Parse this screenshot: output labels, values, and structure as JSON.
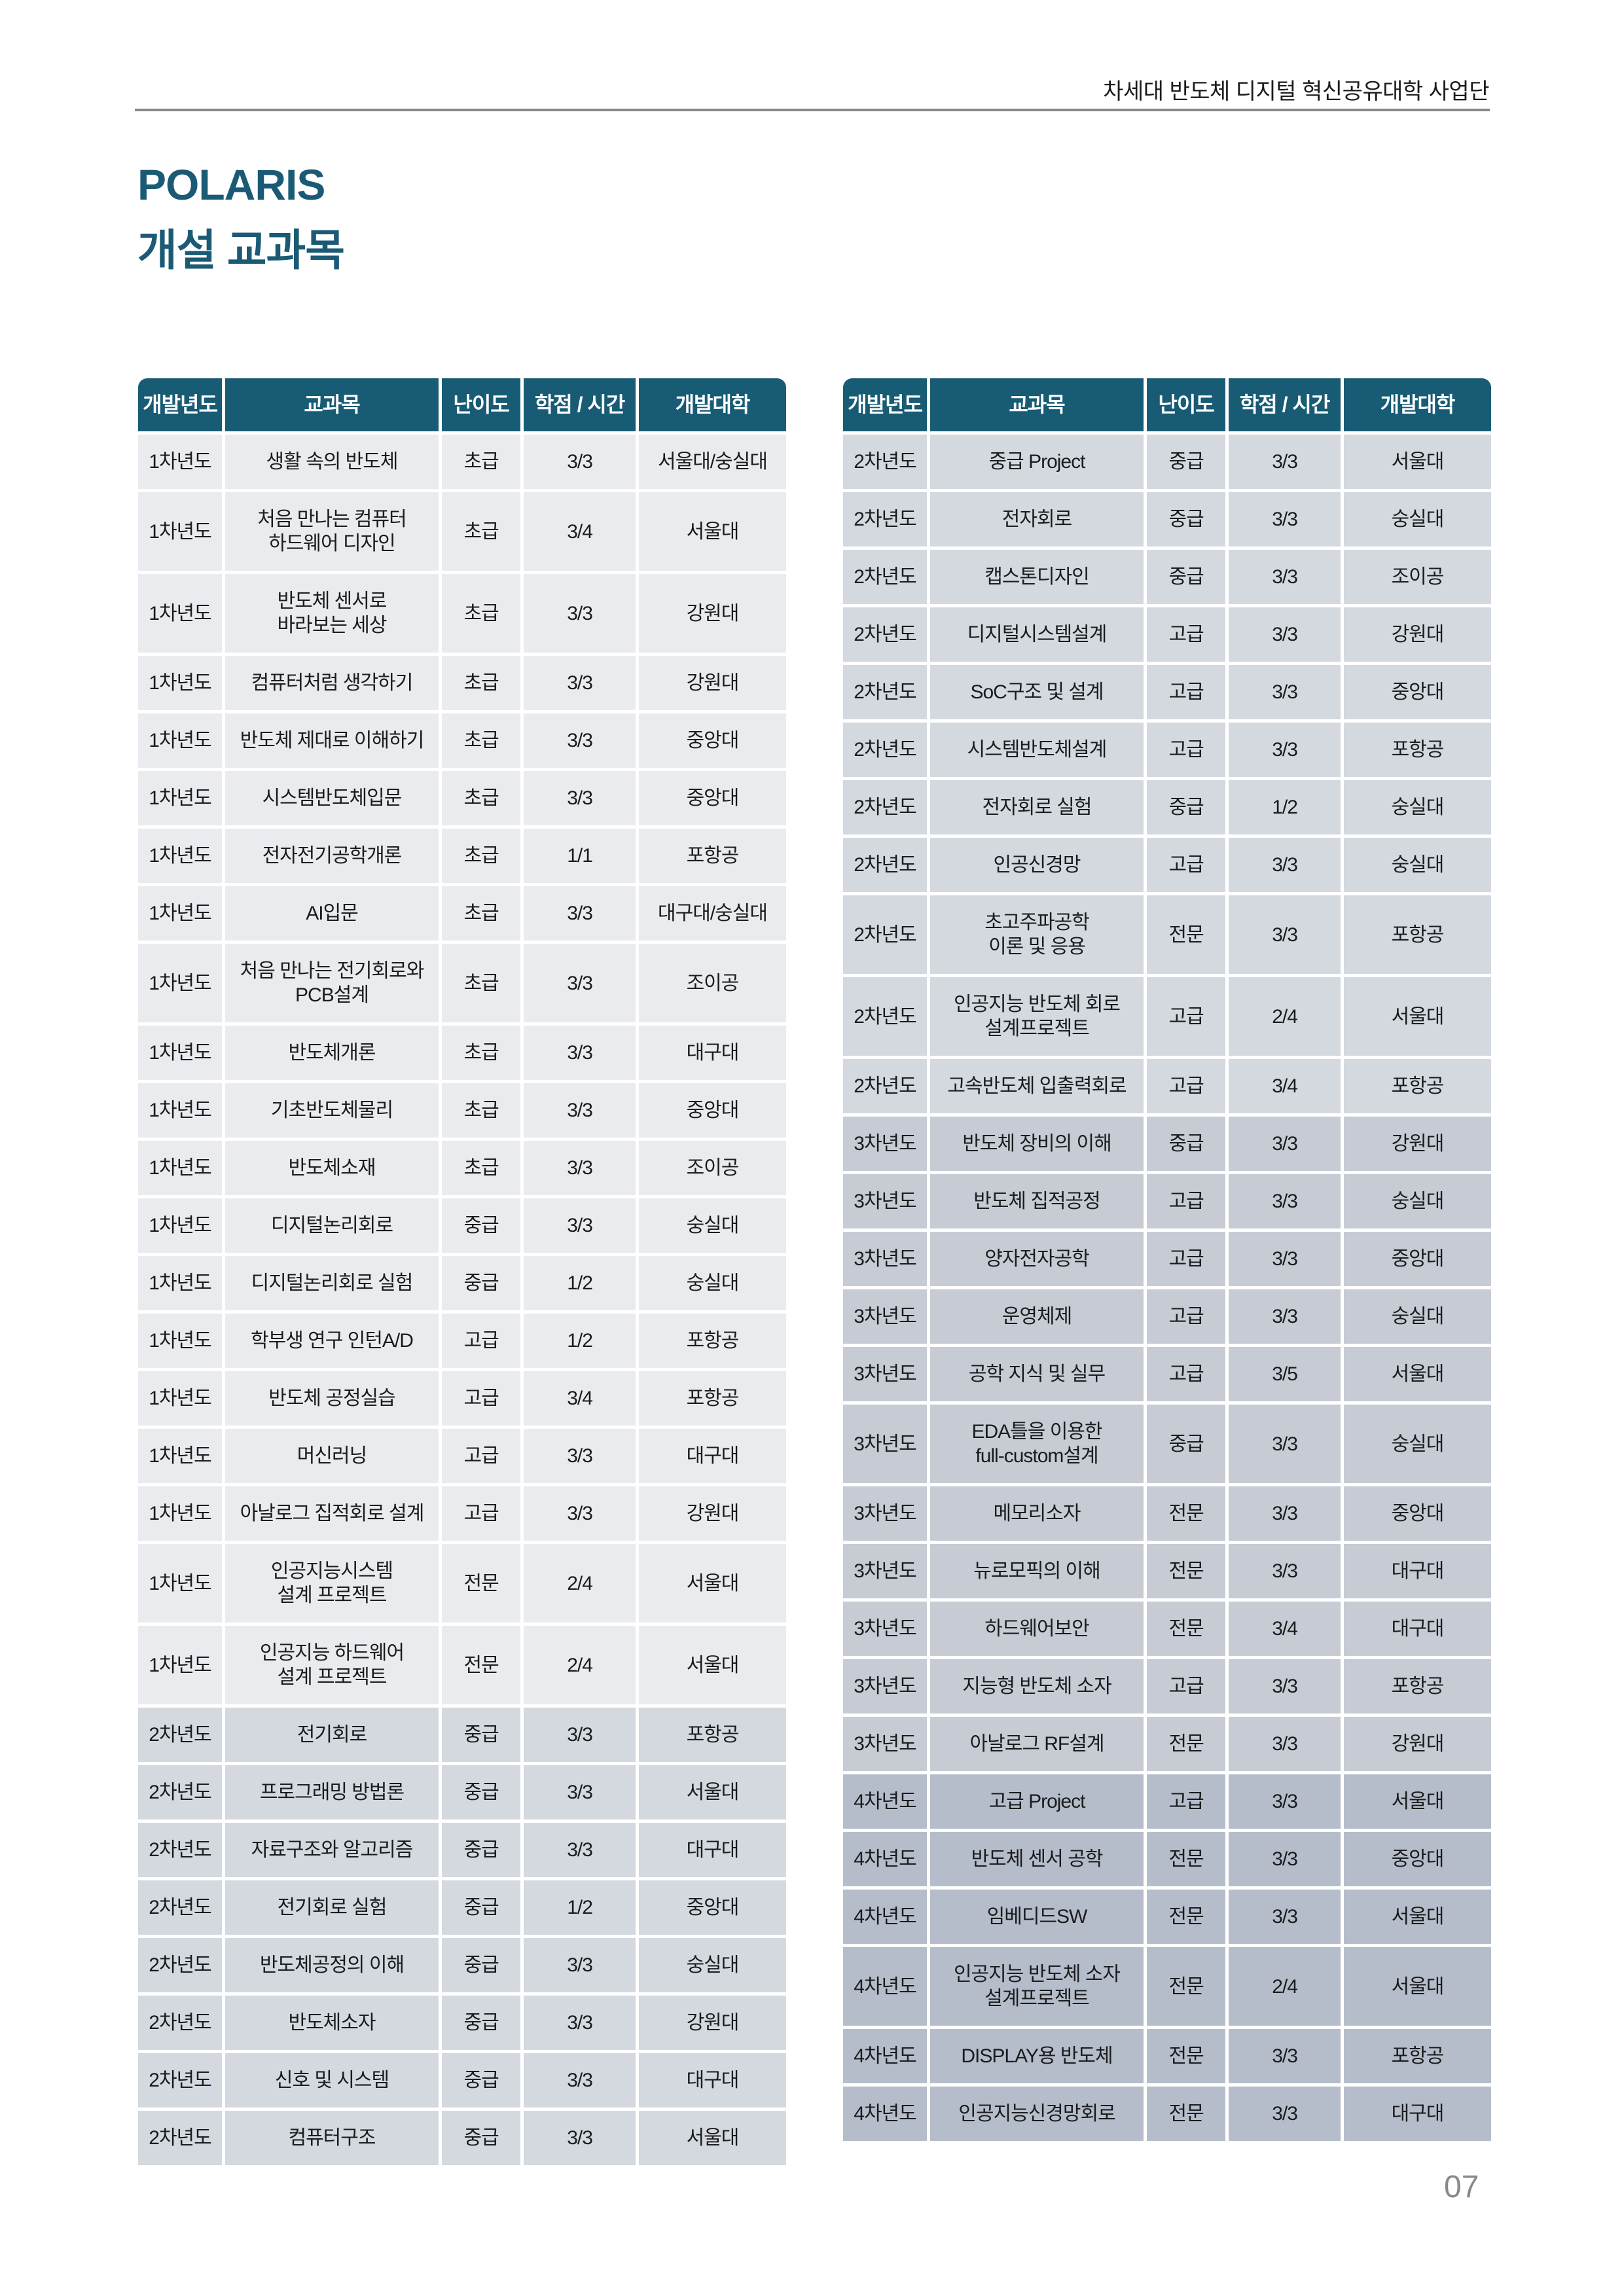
{
  "page": {
    "header_note": "차세대 반도체 디지털 혁신공유대학 사업단",
    "title_line1": "POLARIS",
    "title_line2": "개설 교과목",
    "page_number": "07"
  },
  "colors": {
    "header_bg": "#185b74",
    "title": "#1b5a75",
    "rule": "#84888d",
    "year1_row": "#e9ebef",
    "year2_row": "#d4d8df",
    "year3_row": "#c6cbd4",
    "year4_row": "#b6bdca"
  },
  "columns": [
    "개발년도",
    "교과목",
    "난이도",
    "학점 / 시간",
    "개발대학"
  ],
  "tables": {
    "left": {
      "rows": [
        {
          "year": "1차년도",
          "course": "생활 속의 반도체",
          "level": "초급",
          "credit": "3/3",
          "univ": "서울대/숭실대"
        },
        {
          "year": "1차년도",
          "course": "처음 만나는 컴퓨터\n하드웨어 디자인",
          "level": "초급",
          "credit": "3/4",
          "univ": "서울대"
        },
        {
          "year": "1차년도",
          "course": "반도체 센서로\n바라보는 세상",
          "level": "초급",
          "credit": "3/3",
          "univ": "강원대"
        },
        {
          "year": "1차년도",
          "course": "컴퓨터처럼 생각하기",
          "level": "초급",
          "credit": "3/3",
          "univ": "강원대"
        },
        {
          "year": "1차년도",
          "course": "반도체 제대로 이해하기",
          "level": "초급",
          "credit": "3/3",
          "univ": "중앙대"
        },
        {
          "year": "1차년도",
          "course": "시스템반도체입문",
          "level": "초급",
          "credit": "3/3",
          "univ": "중앙대"
        },
        {
          "year": "1차년도",
          "course": "전자전기공학개론",
          "level": "초급",
          "credit": "1/1",
          "univ": "포항공"
        },
        {
          "year": "1차년도",
          "course": "AI입문",
          "level": "초급",
          "credit": "3/3",
          "univ": "대구대/숭실대"
        },
        {
          "year": "1차년도",
          "course": "처음 만나는 전기회로와\nPCB설계",
          "level": "초급",
          "credit": "3/3",
          "univ": "조이공"
        },
        {
          "year": "1차년도",
          "course": "반도체개론",
          "level": "초급",
          "credit": "3/3",
          "univ": "대구대"
        },
        {
          "year": "1차년도",
          "course": "기초반도체물리",
          "level": "초급",
          "credit": "3/3",
          "univ": "중앙대"
        },
        {
          "year": "1차년도",
          "course": "반도체소재",
          "level": "초급",
          "credit": "3/3",
          "univ": "조이공"
        },
        {
          "year": "1차년도",
          "course": "디지털논리회로",
          "level": "중급",
          "credit": "3/3",
          "univ": "숭실대"
        },
        {
          "year": "1차년도",
          "course": "디지털논리회로 실험",
          "level": "중급",
          "credit": "1/2",
          "univ": "숭실대"
        },
        {
          "year": "1차년도",
          "course": "학부생 연구 인턴A/D",
          "level": "고급",
          "credit": "1/2",
          "univ": "포항공"
        },
        {
          "year": "1차년도",
          "course": "반도체 공정실습",
          "level": "고급",
          "credit": "3/4",
          "univ": "포항공"
        },
        {
          "year": "1차년도",
          "course": "머신러닝",
          "level": "고급",
          "credit": "3/3",
          "univ": "대구대"
        },
        {
          "year": "1차년도",
          "course": "아날로그 집적회로 설계",
          "level": "고급",
          "credit": "3/3",
          "univ": "강원대"
        },
        {
          "year": "1차년도",
          "course": "인공지능시스템\n설계 프로젝트",
          "level": "전문",
          "credit": "2/4",
          "univ": "서울대"
        },
        {
          "year": "1차년도",
          "course": "인공지능 하드웨어\n설계 프로젝트",
          "level": "전문",
          "credit": "2/4",
          "univ": "서울대"
        },
        {
          "year": "2차년도",
          "course": "전기회로",
          "level": "중급",
          "credit": "3/3",
          "univ": "포항공"
        },
        {
          "year": "2차년도",
          "course": "프로그래밍 방법론",
          "level": "중급",
          "credit": "3/3",
          "univ": "서울대"
        },
        {
          "year": "2차년도",
          "course": "자료구조와 알고리즘",
          "level": "중급",
          "credit": "3/3",
          "univ": "대구대"
        },
        {
          "year": "2차년도",
          "course": "전기회로 실험",
          "level": "중급",
          "credit": "1/2",
          "univ": "중앙대"
        },
        {
          "year": "2차년도",
          "course": "반도체공정의 이해",
          "level": "중급",
          "credit": "3/3",
          "univ": "숭실대"
        },
        {
          "year": "2차년도",
          "course": "반도체소자",
          "level": "중급",
          "credit": "3/3",
          "univ": "강원대"
        },
        {
          "year": "2차년도",
          "course": "신호 및 시스템",
          "level": "중급",
          "credit": "3/3",
          "univ": "대구대"
        },
        {
          "year": "2차년도",
          "course": "컴퓨터구조",
          "level": "중급",
          "credit": "3/3",
          "univ": "서울대"
        }
      ]
    },
    "right": {
      "rows": [
        {
          "year": "2차년도",
          "course": "중급 Project",
          "level": "중급",
          "credit": "3/3",
          "univ": "서울대"
        },
        {
          "year": "2차년도",
          "course": "전자회로",
          "level": "중급",
          "credit": "3/3",
          "univ": "숭실대"
        },
        {
          "year": "2차년도",
          "course": "캡스톤디자인",
          "level": "중급",
          "credit": "3/3",
          "univ": "조이공"
        },
        {
          "year": "2차년도",
          "course": "디지털시스템설계",
          "level": "고급",
          "credit": "3/3",
          "univ": "강원대"
        },
        {
          "year": "2차년도",
          "course": "SoC구조 및 설계",
          "level": "고급",
          "credit": "3/3",
          "univ": "중앙대"
        },
        {
          "year": "2차년도",
          "course": "시스템반도체설계",
          "level": "고급",
          "credit": "3/3",
          "univ": "포항공"
        },
        {
          "year": "2차년도",
          "course": "전자회로 실험",
          "level": "중급",
          "credit": "1/2",
          "univ": "숭실대"
        },
        {
          "year": "2차년도",
          "course": "인공신경망",
          "level": "고급",
          "credit": "3/3",
          "univ": "숭실대"
        },
        {
          "year": "2차년도",
          "course": "초고주파공학\n이론 및 응용",
          "level": "전문",
          "credit": "3/3",
          "univ": "포항공"
        },
        {
          "year": "2차년도",
          "course": "인공지능 반도체 회로\n설계프로젝트",
          "level": "고급",
          "credit": "2/4",
          "univ": "서울대"
        },
        {
          "year": "2차년도",
          "course": "고속반도체 입출력회로",
          "level": "고급",
          "credit": "3/4",
          "univ": "포항공"
        },
        {
          "year": "3차년도",
          "course": "반도체 장비의 이해",
          "level": "중급",
          "credit": "3/3",
          "univ": "강원대"
        },
        {
          "year": "3차년도",
          "course": "반도체 집적공정",
          "level": "고급",
          "credit": "3/3",
          "univ": "숭실대"
        },
        {
          "year": "3차년도",
          "course": "양자전자공학",
          "level": "고급",
          "credit": "3/3",
          "univ": "중앙대"
        },
        {
          "year": "3차년도",
          "course": "운영체제",
          "level": "고급",
          "credit": "3/3",
          "univ": "숭실대"
        },
        {
          "year": "3차년도",
          "course": "공학 지식 및 실무",
          "level": "고급",
          "credit": "3/5",
          "univ": "서울대"
        },
        {
          "year": "3차년도",
          "course": "EDA틀을 이용한\nfull-custom설계",
          "level": "중급",
          "credit": "3/3",
          "univ": "숭실대"
        },
        {
          "year": "3차년도",
          "course": "메모리소자",
          "level": "전문",
          "credit": "3/3",
          "univ": "중앙대"
        },
        {
          "year": "3차년도",
          "course": "뉴로모픽의 이해",
          "level": "전문",
          "credit": "3/3",
          "univ": "대구대"
        },
        {
          "year": "3차년도",
          "course": "하드웨어보안",
          "level": "전문",
          "credit": "3/4",
          "univ": "대구대"
        },
        {
          "year": "3차년도",
          "course": "지능형 반도체 소자",
          "level": "고급",
          "credit": "3/3",
          "univ": "포항공"
        },
        {
          "year": "3차년도",
          "course": "아날로그 RF설계",
          "level": "전문",
          "credit": "3/3",
          "univ": "강원대"
        },
        {
          "year": "4차년도",
          "course": "고급 Project",
          "level": "고급",
          "credit": "3/3",
          "univ": "서울대"
        },
        {
          "year": "4차년도",
          "course": "반도체 센서 공학",
          "level": "전문",
          "credit": "3/3",
          "univ": "중앙대"
        },
        {
          "year": "4차년도",
          "course": "임베디드SW",
          "level": "전문",
          "credit": "3/3",
          "univ": "서울대"
        },
        {
          "year": "4차년도",
          "course": "인공지능 반도체 소자\n설계프로젝트",
          "level": "전문",
          "credit": "2/4",
          "univ": "서울대"
        },
        {
          "year": "4차년도",
          "course": "DISPLAY용 반도체",
          "level": "전문",
          "credit": "3/3",
          "univ": "포항공"
        },
        {
          "year": "4차년도",
          "course": "인공지능신경망회로",
          "level": "전문",
          "credit": "3/3",
          "univ": "대구대"
        }
      ]
    }
  }
}
